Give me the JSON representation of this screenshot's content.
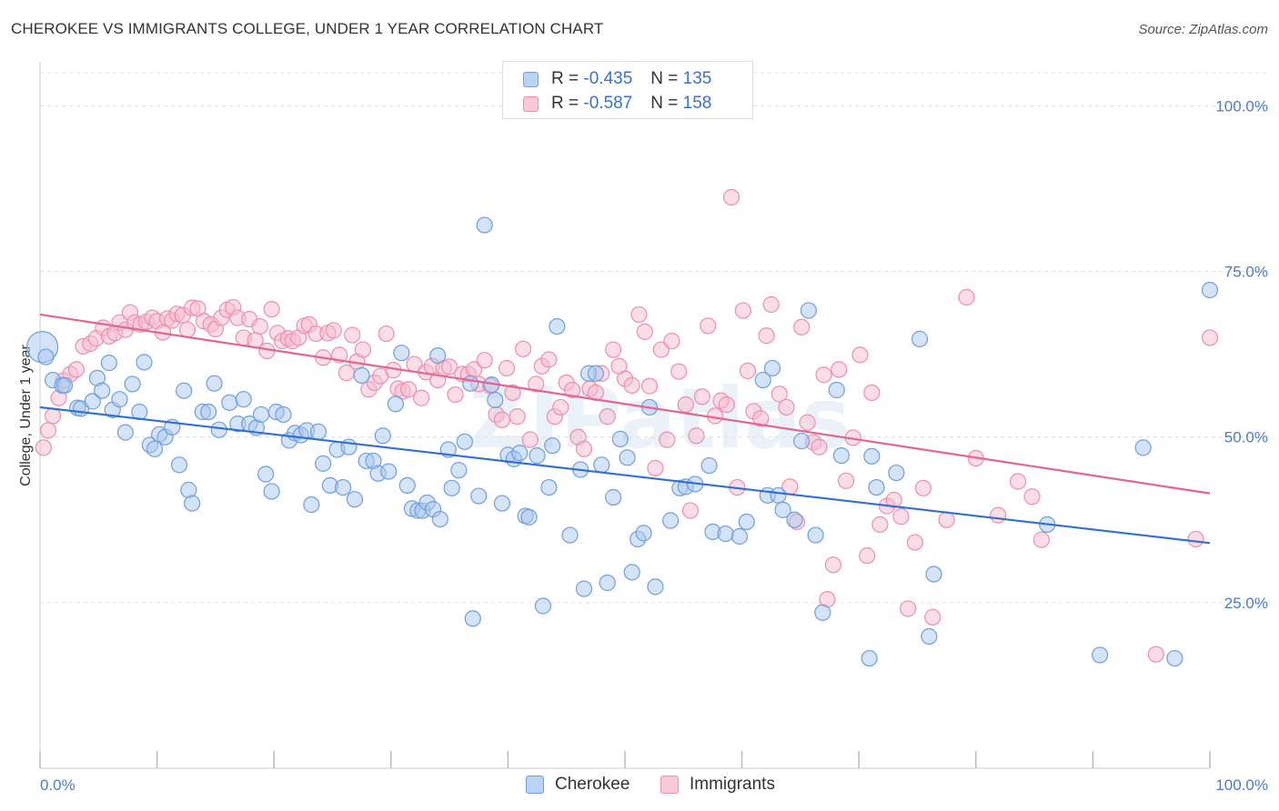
{
  "title": "CHEROKEE VS IMMIGRANTS COLLEGE, UNDER 1 YEAR CORRELATION CHART",
  "source": "Source: ZipAtlas.com",
  "watermark": "ZIPatlas",
  "legend": {
    "rows": [
      {
        "r_label": "R =",
        "r_value": "-0.435",
        "n_label": "N =",
        "n_value": "135"
      },
      {
        "r_label": "R =",
        "r_value": "-0.587",
        "n_label": "N =",
        "n_value": "158"
      }
    ]
  },
  "colors": {
    "cherokee_fill": "#a9c8ef",
    "cherokee_stroke": "#6f9fdc",
    "cherokee_line": "#2f6fd0",
    "immigrants_fill": "#f7bcd0",
    "immigrants_stroke": "#ec8fae",
    "immigrants_line": "#e2668f",
    "tick_text": "#4a7cc9"
  },
  "chart_data": {
    "type": "scatter",
    "title": "CHEROKEE VS IMMIGRANTS COLLEGE, UNDER 1 YEAR CORRELATION CHART",
    "xlabel": "",
    "ylabel": "College, Under 1 year",
    "xlim": [
      0,
      100
    ],
    "ylim": [
      0,
      105
    ],
    "x_tick_labels": [
      "0.0%",
      "100.0%"
    ],
    "y_ticks": [
      25,
      50,
      75,
      100
    ],
    "y_tick_labels": [
      "25.0%",
      "50.0%",
      "75.0%",
      "100.0%"
    ],
    "grid": true,
    "legend_position": "top-center",
    "series": [
      {
        "name": "Cherokee",
        "r": -0.435,
        "n": 135,
        "trend": {
          "x": [
            0,
            100
          ],
          "y": [
            54.5,
            34.0
          ]
        },
        "points": [
          [
            0.2,
            63.6
          ],
          [
            0.5,
            62.1
          ],
          [
            1.1,
            58.6
          ],
          [
            1.9,
            57.8
          ],
          [
            2.1,
            57.8
          ],
          [
            3.2,
            54.4
          ],
          [
            3.5,
            54.3
          ],
          [
            4.5,
            55.4
          ],
          [
            4.9,
            58.9
          ],
          [
            5.3,
            57.0
          ],
          [
            5.9,
            61.2
          ],
          [
            6.2,
            54.1
          ],
          [
            6.8,
            55.7
          ],
          [
            7.3,
            50.7
          ],
          [
            7.9,
            58.0
          ],
          [
            8.5,
            53.8
          ],
          [
            8.9,
            61.3
          ],
          [
            9.4,
            48.8
          ],
          [
            9.8,
            48.2
          ],
          [
            10.2,
            50.4
          ],
          [
            10.7,
            50.0
          ],
          [
            11.3,
            51.5
          ],
          [
            11.9,
            45.8
          ],
          [
            12.3,
            57.0
          ],
          [
            12.7,
            42.0
          ],
          [
            13.0,
            40.0
          ],
          [
            13.9,
            53.8
          ],
          [
            14.4,
            53.8
          ],
          [
            14.9,
            58.1
          ],
          [
            15.3,
            51.1
          ],
          [
            16.2,
            55.2
          ],
          [
            16.9,
            52.0
          ],
          [
            17.4,
            55.7
          ],
          [
            17.9,
            52.0
          ],
          [
            18.5,
            51.4
          ],
          [
            18.9,
            53.4
          ],
          [
            19.3,
            44.4
          ],
          [
            19.8,
            41.8
          ],
          [
            20.2,
            53.8
          ],
          [
            20.8,
            53.4
          ],
          [
            21.3,
            49.5
          ],
          [
            21.8,
            50.6
          ],
          [
            22.3,
            50.3
          ],
          [
            22.8,
            51.0
          ],
          [
            23.2,
            39.8
          ],
          [
            23.8,
            50.8
          ],
          [
            24.2,
            46.0
          ],
          [
            24.8,
            42.7
          ],
          [
            25.4,
            48.1
          ],
          [
            25.9,
            42.4
          ],
          [
            26.4,
            48.5
          ],
          [
            26.9,
            40.6
          ],
          [
            27.5,
            59.3
          ],
          [
            27.9,
            46.4
          ],
          [
            28.5,
            46.4
          ],
          [
            28.9,
            44.5
          ],
          [
            29.3,
            50.2
          ],
          [
            29.8,
            44.8
          ],
          [
            30.4,
            55.0
          ],
          [
            30.9,
            62.7
          ],
          [
            31.4,
            42.7
          ],
          [
            31.8,
            39.2
          ],
          [
            32.3,
            38.9
          ],
          [
            32.7,
            38.9
          ],
          [
            33.1,
            40.1
          ],
          [
            33.6,
            39.1
          ],
          [
            34.0,
            62.3
          ],
          [
            34.2,
            37.6
          ],
          [
            34.9,
            48.1
          ],
          [
            35.2,
            42.3
          ],
          [
            35.8,
            45.0
          ],
          [
            36.3,
            49.3
          ],
          [
            36.8,
            58.1
          ],
          [
            37.0,
            22.6
          ],
          [
            37.5,
            41.1
          ],
          [
            38.0,
            82.0
          ],
          [
            38.6,
            57.9
          ],
          [
            38.9,
            55.6
          ],
          [
            39.5,
            40.0
          ],
          [
            40.0,
            47.3
          ],
          [
            40.5,
            46.7
          ],
          [
            41.0,
            47.6
          ],
          [
            41.5,
            38.1
          ],
          [
            41.8,
            37.9
          ],
          [
            42.5,
            47.2
          ],
          [
            43.0,
            24.5
          ],
          [
            43.5,
            42.4
          ],
          [
            43.8,
            48.7
          ],
          [
            44.2,
            66.7
          ],
          [
            45.3,
            35.2
          ],
          [
            46.2,
            45.1
          ],
          [
            46.5,
            27.1
          ],
          [
            46.9,
            59.6
          ],
          [
            47.5,
            59.6
          ],
          [
            48.0,
            45.8
          ],
          [
            48.5,
            28.0
          ],
          [
            49.0,
            40.9
          ],
          [
            49.6,
            49.7
          ],
          [
            50.2,
            46.9
          ],
          [
            50.6,
            29.6
          ],
          [
            51.1,
            34.6
          ],
          [
            51.6,
            35.5
          ],
          [
            52.1,
            54.5
          ],
          [
            52.6,
            27.4
          ],
          [
            53.9,
            37.4
          ],
          [
            54.7,
            42.3
          ],
          [
            55.2,
            42.5
          ],
          [
            56.0,
            42.9
          ],
          [
            57.2,
            45.7
          ],
          [
            57.5,
            35.7
          ],
          [
            58.6,
            35.4
          ],
          [
            59.8,
            35.0
          ],
          [
            60.4,
            37.2
          ],
          [
            61.8,
            58.6
          ],
          [
            62.2,
            41.2
          ],
          [
            62.6,
            60.4
          ],
          [
            63.1,
            41.2
          ],
          [
            63.5,
            39.0
          ],
          [
            64.5,
            37.5
          ],
          [
            65.1,
            49.4
          ],
          [
            65.7,
            69.1
          ],
          [
            66.3,
            35.2
          ],
          [
            66.9,
            23.5
          ],
          [
            68.1,
            57.1
          ],
          [
            68.5,
            47.2
          ],
          [
            70.9,
            16.6
          ],
          [
            71.1,
            47.1
          ],
          [
            71.5,
            42.4
          ],
          [
            73.2,
            44.6
          ],
          [
            75.2,
            64.8
          ],
          [
            76.0,
            19.9
          ],
          [
            76.4,
            29.3
          ],
          [
            86.1,
            36.8
          ],
          [
            90.6,
            17.1
          ],
          [
            94.3,
            48.4
          ],
          [
            97.0,
            16.6
          ],
          [
            100.0,
            72.2
          ]
        ]
      },
      {
        "name": "Immigrants",
        "r": -0.587,
        "n": 158,
        "trend": {
          "x": [
            0,
            100
          ],
          "y": [
            68.5,
            41.5
          ]
        },
        "points": [
          [
            0.3,
            48.4
          ],
          [
            0.7,
            51.0
          ],
          [
            1.1,
            53.2
          ],
          [
            1.6,
            55.9
          ],
          [
            2.0,
            58.5
          ],
          [
            2.6,
            59.5
          ],
          [
            3.1,
            60.2
          ],
          [
            3.7,
            63.7
          ],
          [
            4.3,
            64.1
          ],
          [
            4.8,
            64.9
          ],
          [
            5.4,
            66.5
          ],
          [
            5.9,
            65.2
          ],
          [
            6.4,
            65.7
          ],
          [
            6.8,
            67.3
          ],
          [
            7.3,
            66.2
          ],
          [
            7.7,
            68.8
          ],
          [
            8.1,
            67.3
          ],
          [
            8.6,
            67.0
          ],
          [
            9.1,
            67.4
          ],
          [
            9.6,
            68.0
          ],
          [
            10.0,
            67.5
          ],
          [
            10.5,
            65.8
          ],
          [
            10.9,
            67.9
          ],
          [
            11.3,
            67.6
          ],
          [
            11.7,
            68.6
          ],
          [
            12.2,
            68.4
          ],
          [
            12.6,
            66.2
          ],
          [
            13.0,
            69.5
          ],
          [
            13.5,
            69.4
          ],
          [
            14.0,
            67.5
          ],
          [
            14.6,
            67.0
          ],
          [
            15.0,
            66.3
          ],
          [
            15.5,
            68.0
          ],
          [
            16.0,
            69.2
          ],
          [
            16.5,
            69.6
          ],
          [
            16.9,
            68.0
          ],
          [
            17.4,
            65.0
          ],
          [
            17.9,
            67.8
          ],
          [
            18.4,
            64.6
          ],
          [
            18.8,
            66.7
          ],
          [
            19.4,
            63.0
          ],
          [
            19.8,
            69.3
          ],
          [
            20.3,
            65.7
          ],
          [
            20.7,
            64.5
          ],
          [
            21.2,
            64.9
          ],
          [
            21.6,
            64.5
          ],
          [
            22.1,
            65.0
          ],
          [
            22.6,
            66.8
          ],
          [
            23.0,
            67.0
          ],
          [
            23.6,
            65.6
          ],
          [
            24.2,
            62.0
          ],
          [
            24.6,
            65.7
          ],
          [
            25.1,
            66.1
          ],
          [
            25.6,
            62.4
          ],
          [
            26.2,
            59.7
          ],
          [
            26.7,
            65.4
          ],
          [
            27.1,
            61.4
          ],
          [
            27.6,
            63.2
          ],
          [
            28.1,
            57.2
          ],
          [
            28.6,
            58.2
          ],
          [
            29.1,
            59.2
          ],
          [
            29.6,
            65.6
          ],
          [
            30.2,
            60.1
          ],
          [
            30.6,
            57.3
          ],
          [
            31.0,
            56.9
          ],
          [
            31.5,
            57.2
          ],
          [
            32.0,
            61.0
          ],
          [
            32.6,
            55.9
          ],
          [
            33.0,
            59.8
          ],
          [
            33.5,
            60.7
          ],
          [
            34.0,
            58.6
          ],
          [
            34.5,
            60.4
          ],
          [
            35.0,
            60.6
          ],
          [
            35.5,
            56.4
          ],
          [
            36.1,
            59.5
          ],
          [
            36.6,
            59.5
          ],
          [
            37.1,
            60.2
          ],
          [
            37.5,
            58.0
          ],
          [
            38.0,
            61.6
          ],
          [
            38.5,
            57.7
          ],
          [
            39.0,
            53.4
          ],
          [
            39.5,
            52.6
          ],
          [
            39.9,
            60.4
          ],
          [
            40.4,
            56.7
          ],
          [
            40.8,
            53.1
          ],
          [
            41.3,
            63.3
          ],
          [
            41.9,
            49.6
          ],
          [
            42.4,
            58.0
          ],
          [
            42.9,
            60.7
          ],
          [
            43.5,
            61.7
          ],
          [
            44.0,
            53.1
          ],
          [
            44.5,
            54.5
          ],
          [
            45.0,
            58.2
          ],
          [
            45.5,
            57.1
          ],
          [
            46.0,
            50.0
          ],
          [
            46.5,
            48.2
          ],
          [
            47.0,
            57.3
          ],
          [
            47.5,
            56.7
          ],
          [
            48.0,
            59.6
          ],
          [
            48.5,
            53.1
          ],
          [
            49.0,
            63.2
          ],
          [
            49.5,
            60.7
          ],
          [
            50.0,
            58.8
          ],
          [
            50.6,
            57.8
          ],
          [
            51.2,
            68.5
          ],
          [
            51.7,
            65.9
          ],
          [
            52.1,
            57.7
          ],
          [
            52.6,
            45.3
          ],
          [
            53.1,
            63.2
          ],
          [
            53.6,
            49.6
          ],
          [
            54.0,
            64.5
          ],
          [
            54.6,
            59.9
          ],
          [
            55.2,
            54.9
          ],
          [
            55.6,
            38.9
          ],
          [
            56.1,
            50.2
          ],
          [
            56.6,
            56.1
          ],
          [
            57.1,
            66.8
          ],
          [
            57.7,
            53.2
          ],
          [
            58.2,
            55.5
          ],
          [
            58.7,
            54.9
          ],
          [
            59.1,
            86.2
          ],
          [
            59.6,
            42.4
          ],
          [
            60.1,
            69.1
          ],
          [
            60.5,
            60.0
          ],
          [
            61.0,
            53.9
          ],
          [
            61.6,
            52.8
          ],
          [
            62.1,
            65.3
          ],
          [
            62.5,
            70.0
          ],
          [
            63.2,
            56.5
          ],
          [
            63.8,
            54.5
          ],
          [
            64.1,
            42.5
          ],
          [
            64.7,
            37.2
          ],
          [
            65.1,
            66.6
          ],
          [
            65.6,
            52.2
          ],
          [
            66.1,
            49.2
          ],
          [
            66.6,
            48.5
          ],
          [
            67.0,
            59.4
          ],
          [
            67.3,
            25.5
          ],
          [
            67.8,
            30.7
          ],
          [
            68.3,
            60.2
          ],
          [
            68.9,
            43.4
          ],
          [
            69.5,
            49.9
          ],
          [
            70.1,
            62.4
          ],
          [
            70.7,
            32.1
          ],
          [
            71.1,
            56.7
          ],
          [
            71.8,
            36.8
          ],
          [
            72.4,
            39.6
          ],
          [
            73.0,
            40.5
          ],
          [
            73.6,
            38.0
          ],
          [
            74.2,
            24.1
          ],
          [
            74.8,
            34.1
          ],
          [
            75.5,
            42.3
          ],
          [
            76.3,
            22.8
          ],
          [
            77.5,
            37.5
          ],
          [
            79.2,
            71.1
          ],
          [
            80.0,
            46.8
          ],
          [
            81.9,
            38.2
          ],
          [
            83.6,
            43.3
          ],
          [
            84.8,
            41.0
          ],
          [
            85.6,
            34.5
          ],
          [
            95.4,
            17.2
          ],
          [
            98.8,
            34.6
          ],
          [
            100.0,
            65.0
          ]
        ]
      }
    ]
  }
}
